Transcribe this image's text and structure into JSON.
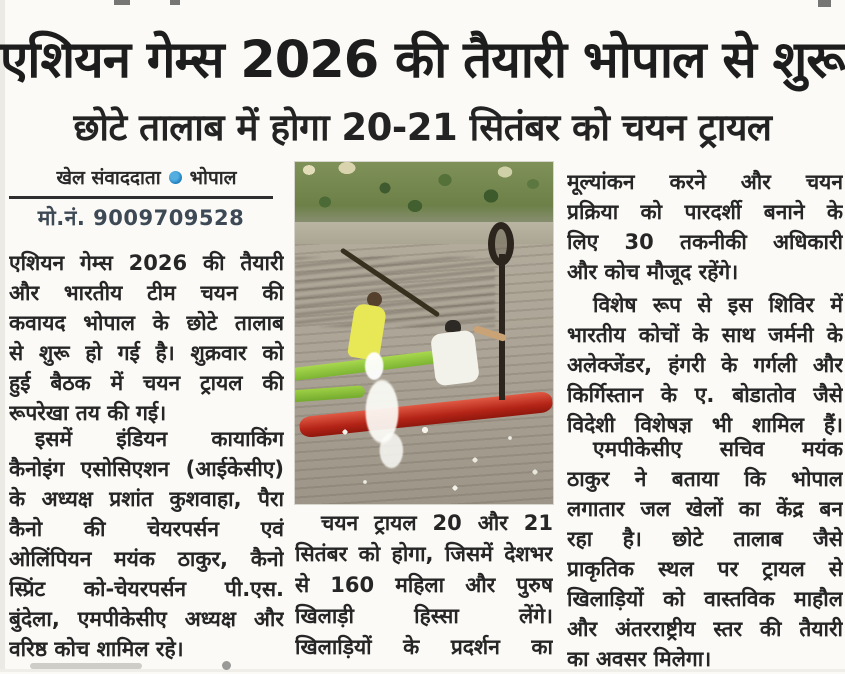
{
  "headline": {
    "main": "एशियन गेम्स 2026 की तैयारी भोपाल से शुरू",
    "sub": "छोटे तालाब में होगा 20-21 सितंबर को चयन ट्रायल"
  },
  "byline": {
    "author": "खेल संवाददाता",
    "location": "भोपाल",
    "phone": "मो.नं. 9009709528"
  },
  "columns": {
    "left": {
      "para1_lines": [
        "एशियन गेम्स 2026 की तैयारी",
        "और भारतीय टीम चयन की",
        "कवायद भोपाल के छोटे तालाब",
        "से शुरू हो गई है। शुक्रवार को",
        "हुई बैठक में चयन ट्रायल की",
        "रूपरेखा तय की गई।"
      ],
      "para2_lines": [
        "इसमें इंडियन कायाकिंग",
        "कैनोइंग एसोसिएशन (आईकेसीए)",
        "के अध्यक्ष प्रशांत कुशवाहा, पैरा",
        "कैनो की चेयरपर्सन एवं",
        "ओलिंपियन मयंक ठाकुर, कैनो",
        "स्प्रिंट को-चेयरपर्सन पी.एस.",
        "बुंदेला, एमपीकेसीए अध्यक्ष और",
        "वरिष्ठ कोच शामिल रहे।"
      ]
    },
    "middle": {
      "caption_lines": [
        "चयन ट्रायल 20 और 21",
        "सितंबर को होगा, जिसमें देशभर",
        "से 160 महिला और पुरुष",
        "खिलाड़ी हिस्सा लेंगे।",
        "खिलाड़ियों के प्रदर्शन का"
      ]
    },
    "right": {
      "para1_lines": [
        "मूल्यांकन करने और चयन",
        "प्रक्रिया को पारदर्शी बनाने के",
        "लिए 30 तकनीकी अधिकारी",
        "और कोच मौजूद रहेंगे।"
      ],
      "para2_lines": [
        "विशेष रूप से इस शिविर में",
        "भारतीय कोचों के साथ जर्मनी के",
        "अलेक्जेंडर, हंगरी के गर्गली और",
        "किर्गिस्तान के ए. बोडातोव जैसे",
        "विदेशी विशेषज्ञ भी शामिल हैं।"
      ],
      "para3_lines": [
        "एमपीकेसीए सचिव मयंक",
        "ठाकुर ने बताया कि भोपाल",
        "लगातार जल खेलों का केंद्र बन",
        "रहा है। छोटे तालाब जैसे",
        "प्राकृतिक स्थल पर ट्रायल से",
        "खिलाड़ियों को वास्तविक माहौल",
        "और अंतरराष्ट्रीय स्तर की तैयारी",
        "का अवसर मिलेगा।"
      ]
    }
  },
  "photo": {
    "kind": "news-photo-kayaking-trial",
    "colors": {
      "kayak_red": "#b42417",
      "kayak_green": "#8cc63e",
      "water": "#aca496",
      "trees": "#6c8048",
      "shirt_yellow": "#e8e755"
    }
  },
  "colors": {
    "byline_dot_blue": "#1d7fc0",
    "headline_text": "#1d1d1d",
    "body_text": "#262626",
    "phone_text": "#3d4954"
  }
}
